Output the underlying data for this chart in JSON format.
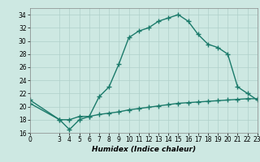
{
  "xlabel": "Humidex (Indice chaleur)",
  "ylabel": "",
  "xlim": [
    0,
    23
  ],
  "ylim": [
    16,
    35
  ],
  "yticks": [
    16,
    18,
    20,
    22,
    24,
    26,
    28,
    30,
    32,
    34
  ],
  "xticks": [
    0,
    3,
    4,
    5,
    6,
    7,
    8,
    9,
    10,
    11,
    12,
    13,
    14,
    15,
    16,
    17,
    18,
    19,
    20,
    21,
    22,
    23
  ],
  "line1_x": [
    0,
    3,
    4,
    5,
    6,
    7,
    8,
    9,
    10,
    11,
    12,
    13,
    14,
    15,
    16,
    17,
    18,
    19,
    20,
    21,
    22,
    23
  ],
  "line1_y": [
    21,
    18,
    16.5,
    18,
    18.5,
    21.5,
    23,
    26.5,
    30.5,
    31.5,
    32,
    33,
    33.5,
    34,
    33,
    31,
    29.5,
    29,
    28,
    23,
    22,
    21
  ],
  "line2_x": [
    0,
    3,
    4,
    5,
    6,
    7,
    8,
    9,
    10,
    11,
    12,
    13,
    14,
    15,
    16,
    17,
    18,
    19,
    20,
    21,
    22,
    23
  ],
  "line2_y": [
    20.5,
    18,
    18,
    18.5,
    18.5,
    18.8,
    19.0,
    19.2,
    19.5,
    19.7,
    19.9,
    20.1,
    20.3,
    20.5,
    20.6,
    20.7,
    20.8,
    20.9,
    21.0,
    21.1,
    21.2,
    21.2
  ],
  "line_color": "#1a7a6a",
  "bg_color": "#cde8e2",
  "grid_color": "#b0d0ca",
  "marker": "+",
  "marker_size": 4,
  "line_width": 1.0,
  "tick_fontsize": 5.5,
  "xlabel_fontsize": 6.5
}
